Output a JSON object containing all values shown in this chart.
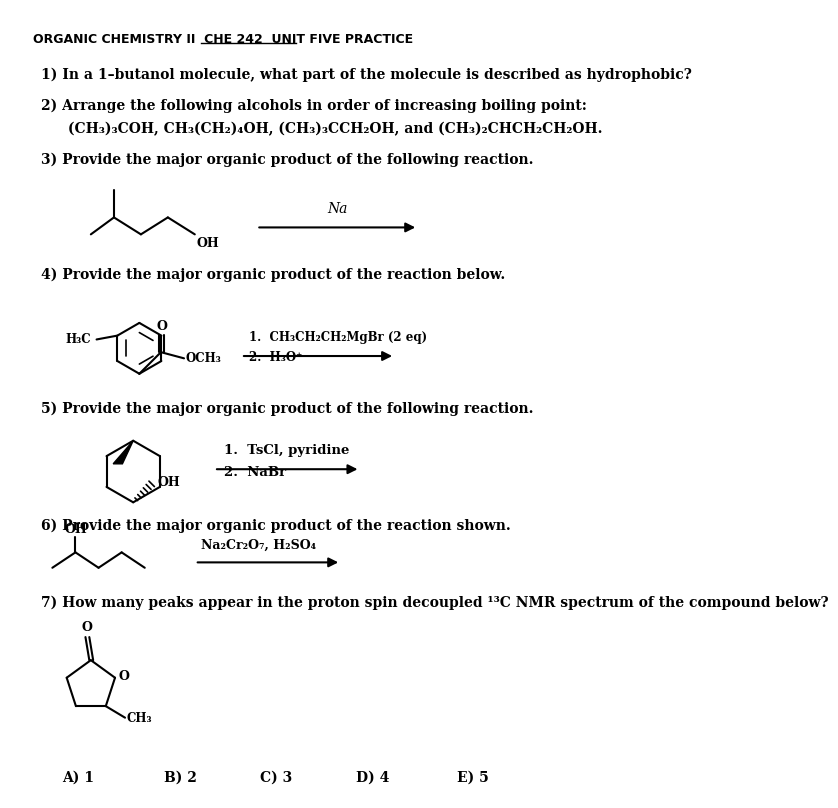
{
  "title_plain": "ORGANIC CHEMISTRY II  CHE 242  ",
  "title_underlined": "UNIT FIVE PRACTICE",
  "q1": "1) In a 1–butanol molecule, what part of the molecule is described as hydrophobic?",
  "q2": "2) Arrange the following alcohols in order of increasing boiling point:",
  "q2_sub": "(CH₃)₃COH, CH₃(CH₂)₄OH, (CH₃)₃CCH₂OH, and (CH₃)₂CHCH₂CH₂OH.",
  "q3": "3) Provide the major organic product of the following reaction.",
  "q4": "4) Provide the major organic product of the reaction below.",
  "q4_cond1": "1.  CH₃CH₂CH₂MgBr (2 eq)",
  "q4_cond2": "2.  H₃O⁺",
  "q5": "5) Provide the major organic product of the following reaction.",
  "q5_cond1": "1.  TsCl, pyridine",
  "q5_cond2": "2.  NaBr",
  "q6": "6) Provide the major organic product of the reaction shown.",
  "q6_cond": "Na₂Cr₂O₇, H₂SO₄",
  "q7": "7) How many peaks appear in the proton spin decoupled ¹³C NMR spectrum of the compound below?",
  "q7_choices": [
    "A) 1",
    "B) 2",
    "C) 3",
    "D) 4",
    "E) 5"
  ],
  "bg_color": "#ffffff"
}
